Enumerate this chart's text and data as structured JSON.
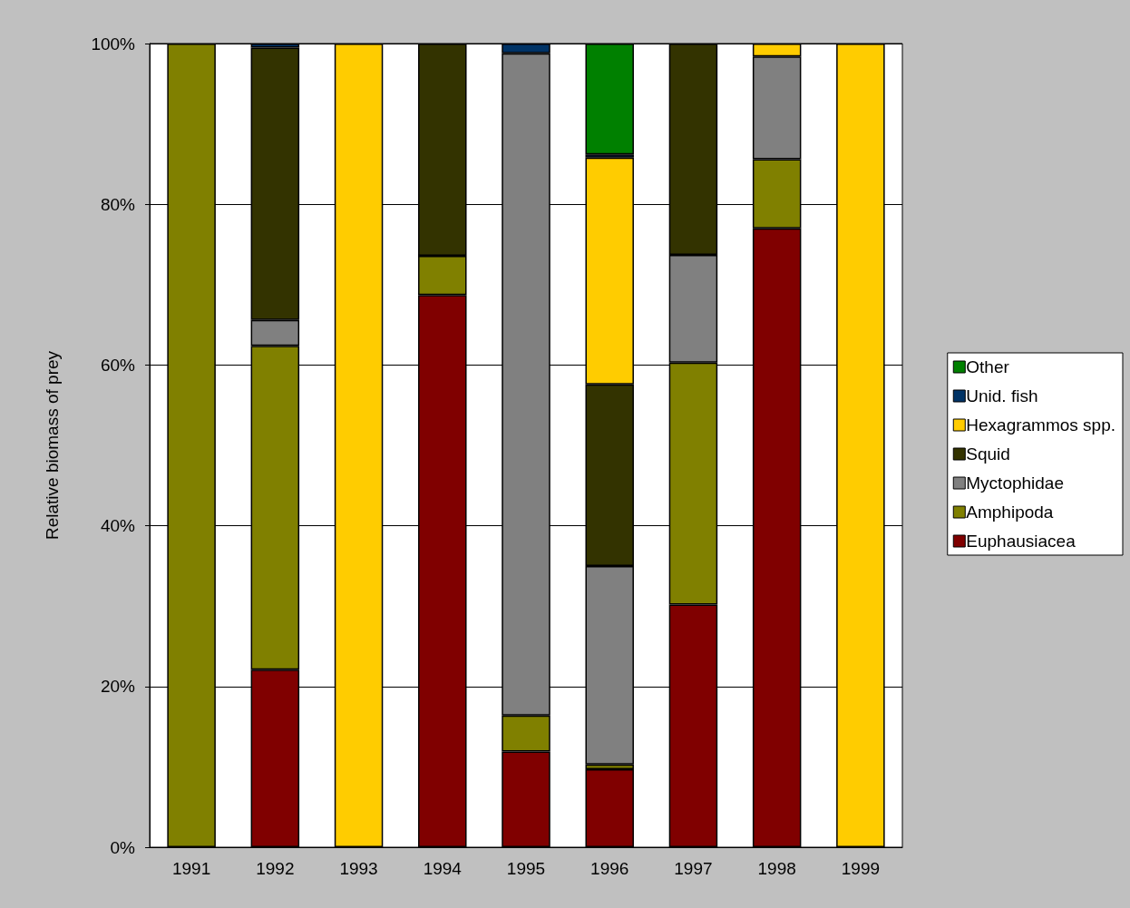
{
  "chart_data": {
    "type": "bar",
    "stacked": true,
    "ylabel": "Relative biomass of prey",
    "categories": [
      "1991",
      "1992",
      "1993",
      "1994",
      "1995",
      "1996",
      "1997",
      "1998",
      "1999"
    ],
    "series": [
      {
        "name": "Euphausiacea",
        "color": "#800000",
        "values": [
          null,
          22.1,
          null,
          68.7,
          11.9,
          9.7,
          30.2,
          77.0,
          null
        ]
      },
      {
        "name": "Amphipoda",
        "color": "#808000",
        "values": [
          100,
          40.3,
          null,
          4.9,
          4.5,
          0.6,
          30.1,
          8.6,
          null
        ]
      },
      {
        "name": "Myctophidae",
        "color": "#808080",
        "values": [
          null,
          3.2,
          null,
          null,
          82.4,
          24.7,
          13.4,
          12.8,
          null
        ]
      },
      {
        "name": "Squid",
        "color": "#333300",
        "values": [
          null,
          33.9,
          null,
          26.4,
          null,
          22.6,
          26.3,
          null,
          null
        ]
      },
      {
        "name": "Hexagrammos spp.",
        "color": "#ffcc00",
        "values": [
          null,
          null,
          100,
          null,
          null,
          28.2,
          null,
          1.6,
          100
        ]
      },
      {
        "name": "Unid. fish",
        "color": "#003366",
        "values": [
          null,
          0.5,
          null,
          null,
          1.2,
          0.4,
          null,
          null,
          null
        ]
      },
      {
        "name": "Other",
        "color": "#008000",
        "values": [
          null,
          null,
          null,
          null,
          null,
          13.8,
          null,
          null,
          null
        ]
      }
    ],
    "ylim": [
      0,
      100
    ],
    "yticks": [
      {
        "value": 0,
        "label": "0%"
      },
      {
        "value": 20,
        "label": "20%"
      },
      {
        "value": 40,
        "label": "40%"
      },
      {
        "value": 60,
        "label": "60%"
      },
      {
        "value": 80,
        "label": "80%"
      },
      {
        "value": 100,
        "label": "100%"
      }
    ],
    "grid": "y",
    "legend": "right"
  }
}
